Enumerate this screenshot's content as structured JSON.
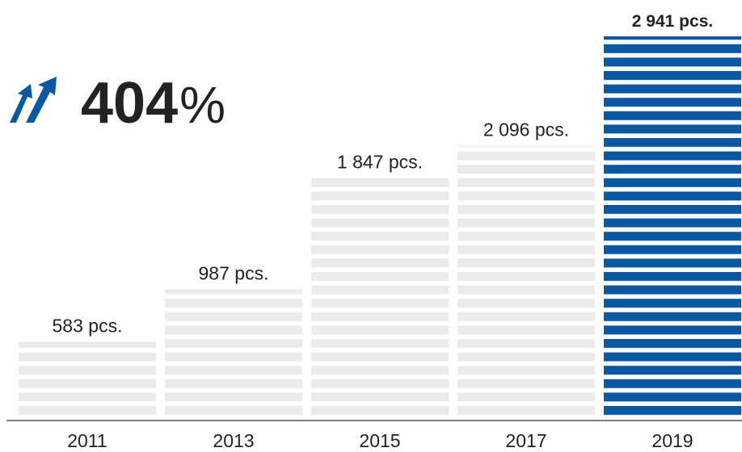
{
  "chart_data": {
    "type": "bar",
    "categories": [
      "2011",
      "2013",
      "2015",
      "2017",
      "2019"
    ],
    "values": [
      583,
      987,
      1847,
      2096,
      2941
    ],
    "value_labels": [
      "583 pcs.",
      "987 pcs.",
      "1 847 pcs.",
      "2 096 pcs.",
      "2 941 pcs."
    ],
    "colors": [
      "#ebebeb",
      "#ebebeb",
      "#ebebeb",
      "#ebebeb",
      "#0b58a2"
    ],
    "annotation": {
      "number": "404",
      "suffix": "%"
    }
  }
}
